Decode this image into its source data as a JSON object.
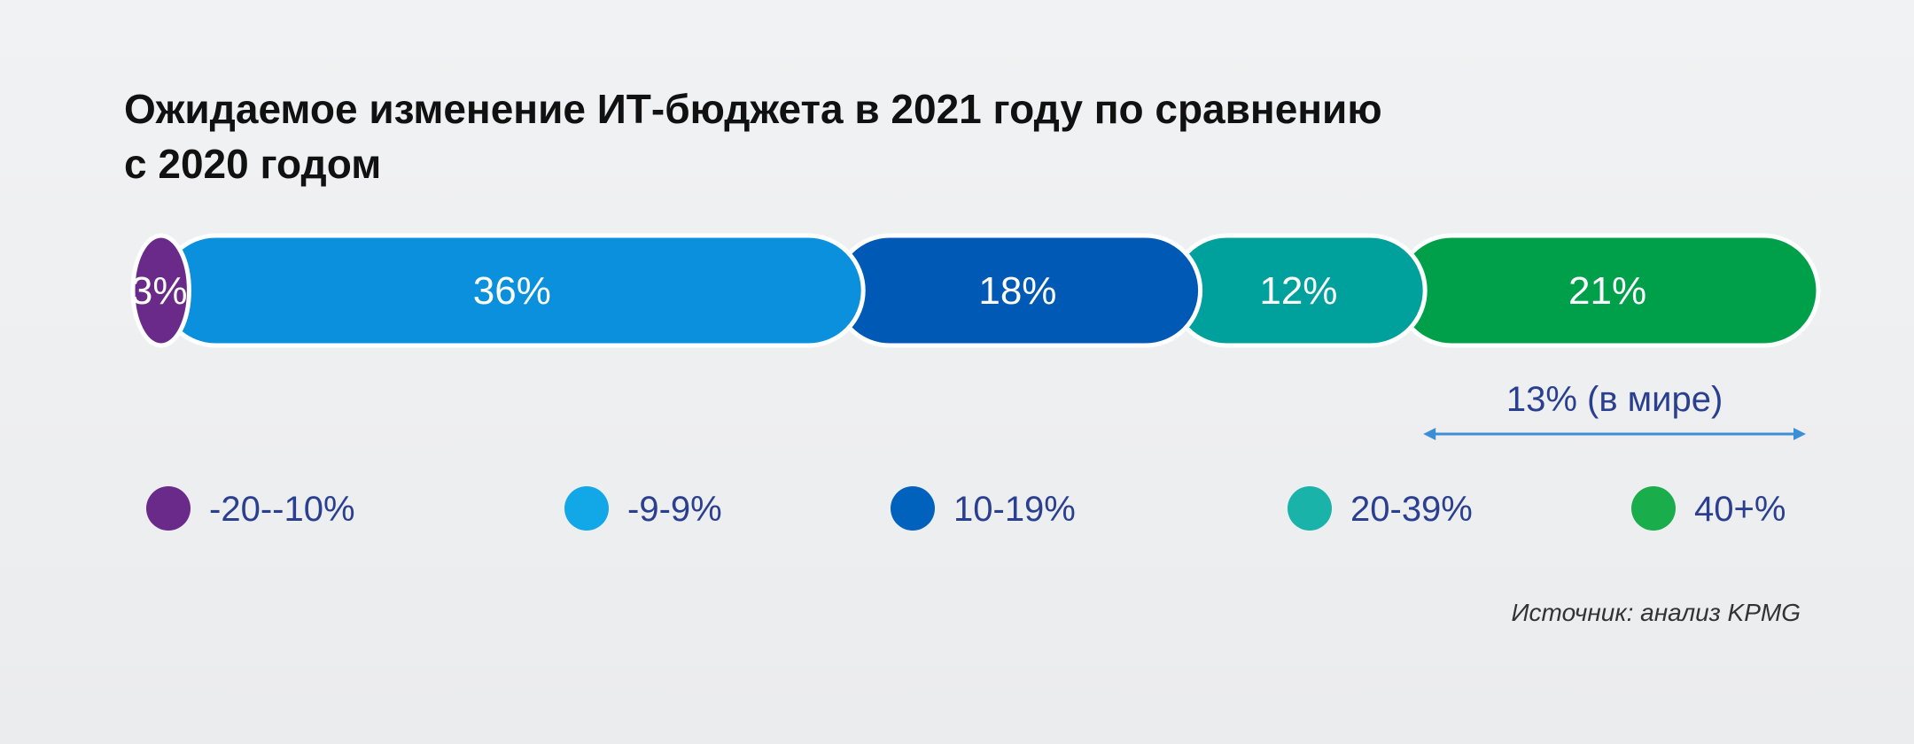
{
  "chart_data": {
    "type": "bar",
    "orientation": "horizontal-stacked",
    "title_lines": [
      "Ожидаемое изменение ИТ-бюджета в 2021 году по сравнению",
      "с 2020 годом"
    ],
    "categories": [
      "-20--10%",
      "-9-9%",
      "10-19%",
      "20-39%",
      "40+%"
    ],
    "values": [
      3,
      36,
      18,
      12,
      21
    ],
    "value_labels": [
      "3%",
      "36%",
      "18%",
      "12%",
      "21%"
    ],
    "colors": [
      "#6a2a8a",
      "#0a90dd",
      "#0059b5",
      "#00a19c",
      "#00a04b"
    ],
    "legend_colors": [
      "#6a2a8a",
      "#12a7e6",
      "#0062bd",
      "#19b3aa",
      "#19ad4b"
    ],
    "legend_position": "bottom",
    "annotation": {
      "text": "13% (в мире)",
      "span_categories": [
        "40+%"
      ]
    },
    "source": "Источник: анализ KPMG"
  }
}
